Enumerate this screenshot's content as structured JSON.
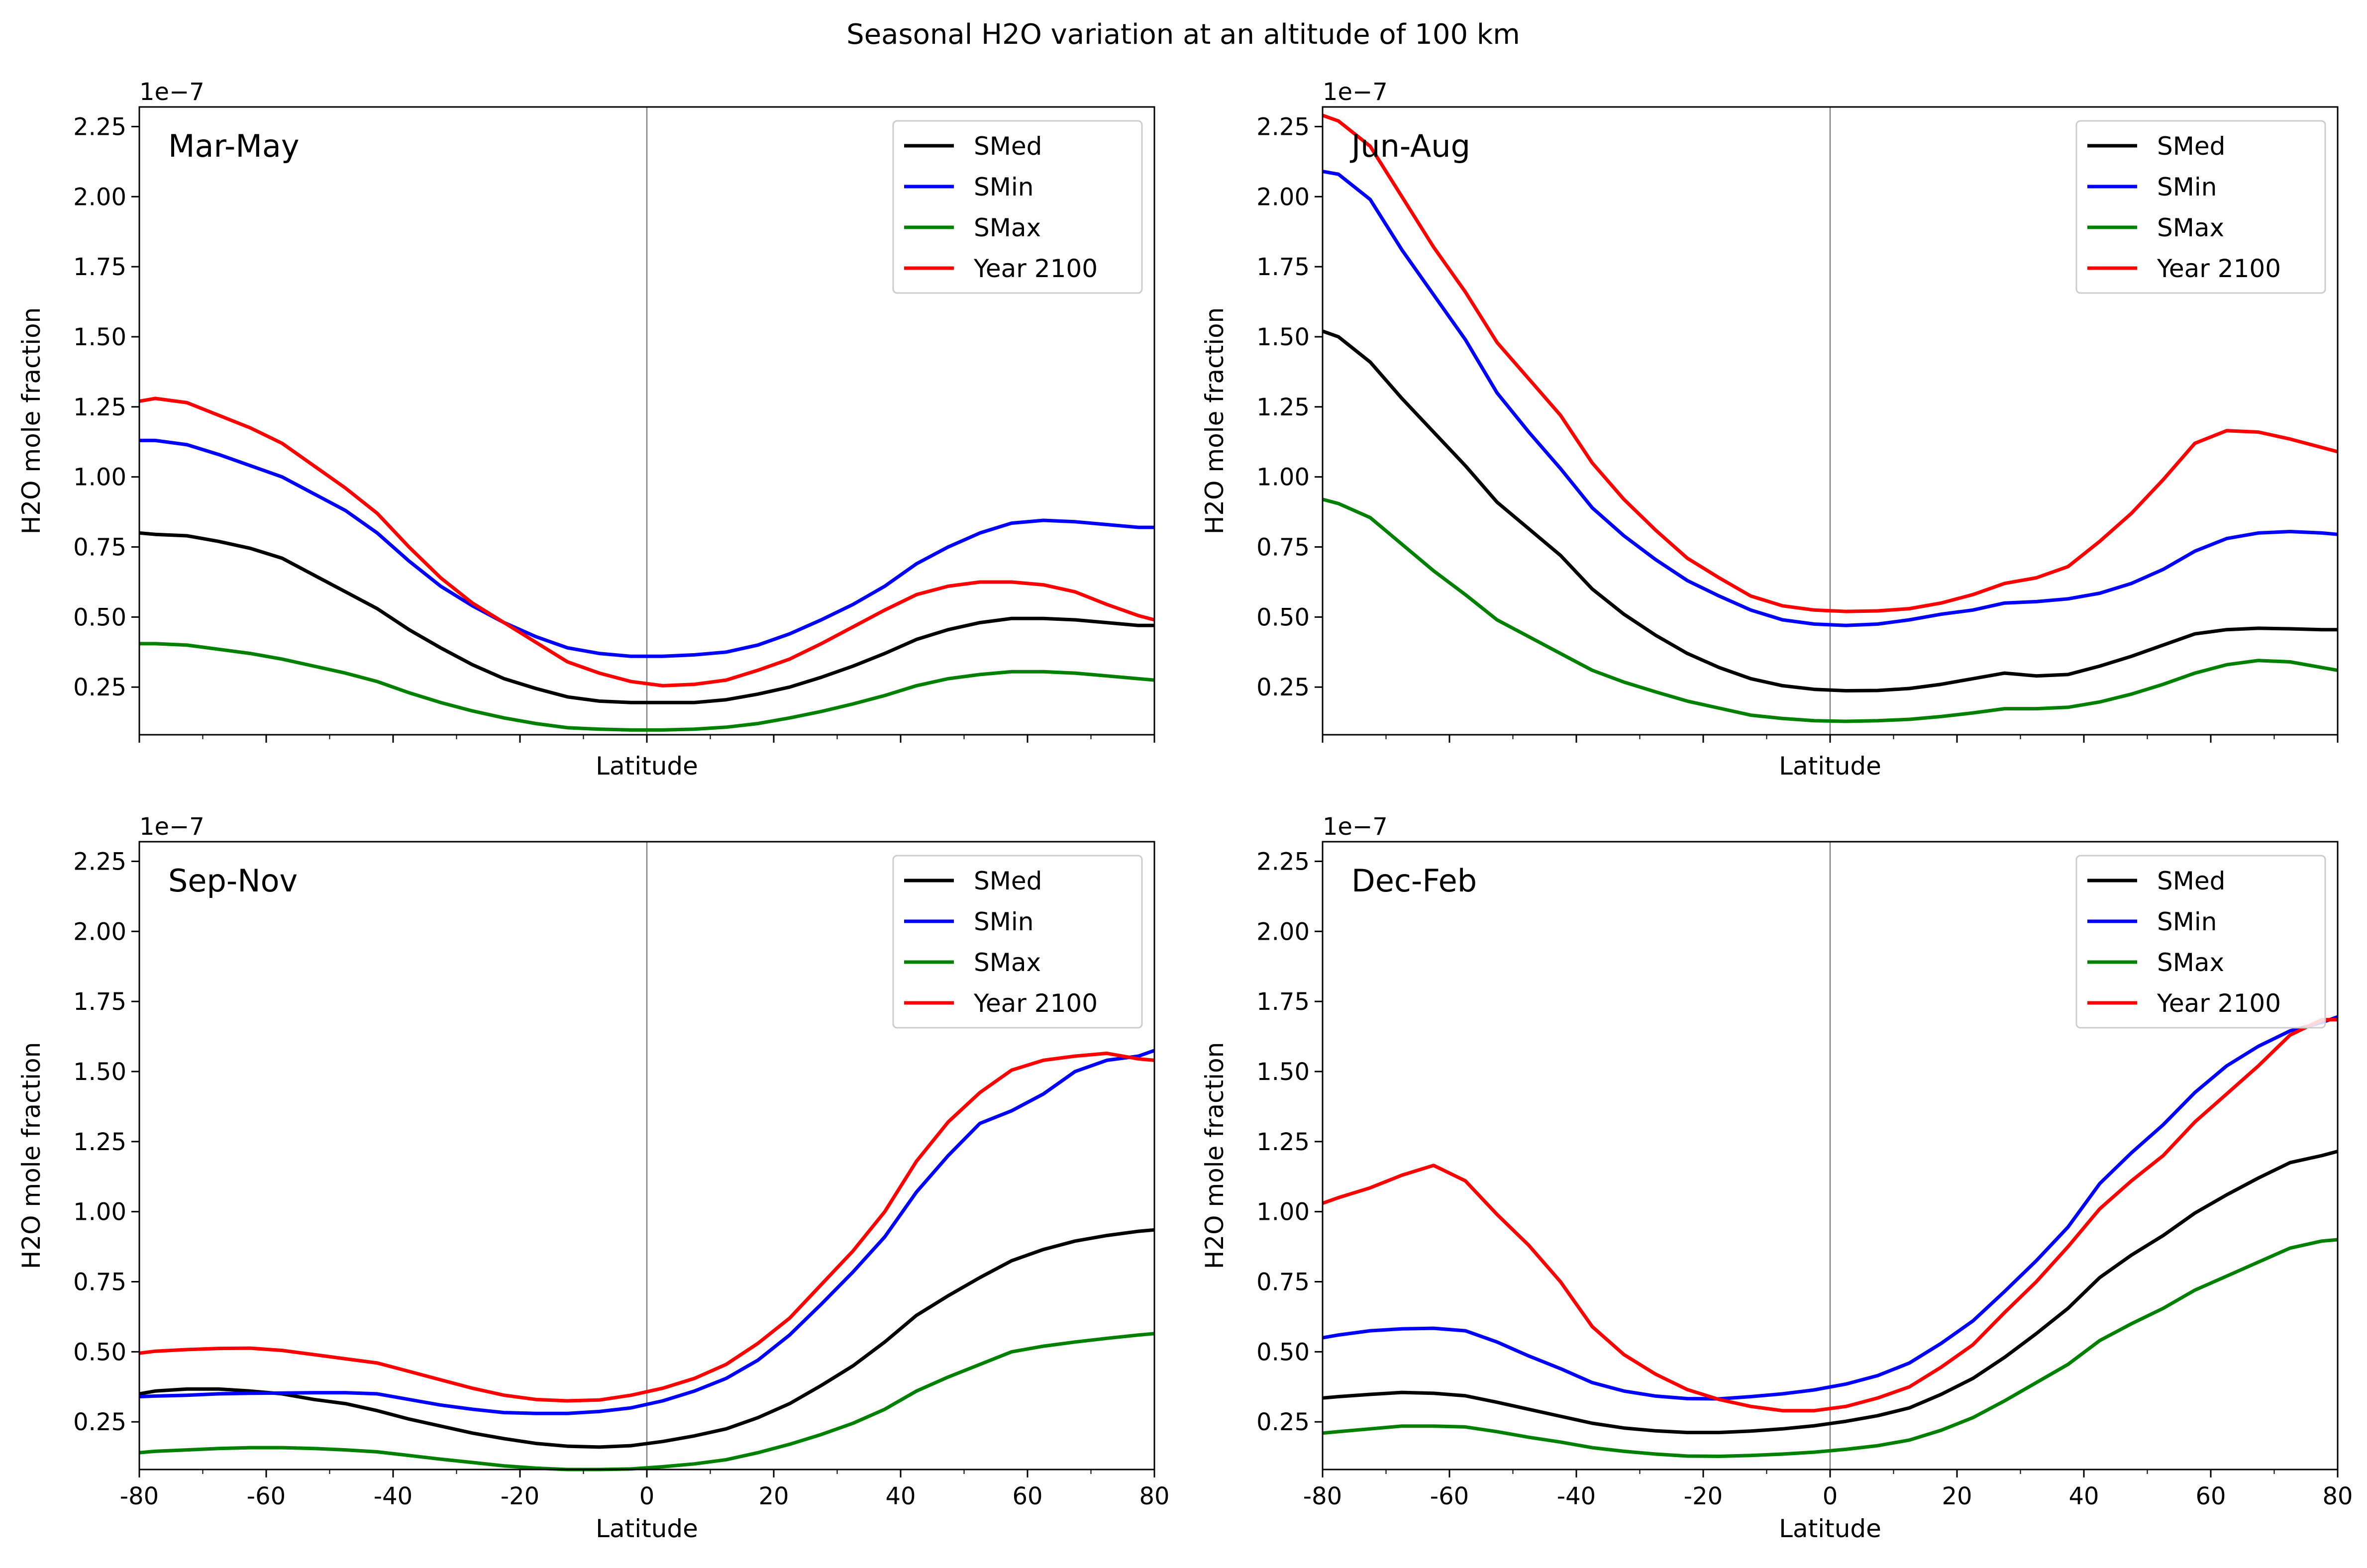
{
  "figure": {
    "title": "Seasonal H2O variation at an altitude of 100 km"
  },
  "colors": {
    "SMed": "#000000",
    "SMin": "#0000ff",
    "SMax": "#008000",
    "Year 2100": "#ff0000",
    "zero_line": "#808080"
  },
  "chart_data": [
    {
      "type": "line",
      "title": "Mar-May",
      "xlabel": "Latitude",
      "ylabel": "H2O mole fraction",
      "y_scale_label": "1e−7",
      "xlim": [
        -80,
        80
      ],
      "ylim": [
        0.08,
        2.32
      ],
      "xticks": [
        -80,
        -60,
        -40,
        -20,
        0,
        20,
        40,
        60,
        80
      ],
      "show_xtick_labels": false,
      "yticks": [
        0.25,
        0.5,
        0.75,
        1.0,
        1.25,
        1.5,
        1.75,
        2.0,
        2.25
      ],
      "ytick_labels": [
        "0.25",
        "0.50",
        "0.75",
        "1.00",
        "1.25",
        "1.50",
        "1.75",
        "2.00",
        "2.25"
      ],
      "legend": "top-right",
      "x": [
        -80,
        -77.5,
        -72.5,
        -67.5,
        -62.5,
        -57.5,
        -52.5,
        -47.5,
        -42.5,
        -37.5,
        -32.5,
        -27.5,
        -22.5,
        -17.5,
        -12.5,
        -7.5,
        -2.5,
        2.5,
        7.5,
        12.5,
        17.5,
        22.5,
        27.5,
        32.5,
        37.5,
        42.5,
        47.5,
        52.5,
        57.5,
        62.5,
        67.5,
        72.5,
        77.5,
        80
      ],
      "series": [
        {
          "name": "SMed",
          "values": [
            0.8,
            0.795,
            0.79,
            0.77,
            0.745,
            0.71,
            0.65,
            0.59,
            0.53,
            0.455,
            0.39,
            0.33,
            0.28,
            0.245,
            0.215,
            0.2,
            0.195,
            0.195,
            0.195,
            0.205,
            0.225,
            0.25,
            0.285,
            0.325,
            0.37,
            0.42,
            0.455,
            0.48,
            0.495,
            0.495,
            0.49,
            0.48,
            0.47,
            0.47
          ]
        },
        {
          "name": "SMin",
          "values": [
            1.13,
            1.13,
            1.115,
            1.08,
            1.04,
            1.0,
            0.94,
            0.88,
            0.8,
            0.7,
            0.61,
            0.54,
            0.48,
            0.43,
            0.39,
            0.37,
            0.36,
            0.36,
            0.365,
            0.375,
            0.4,
            0.44,
            0.49,
            0.545,
            0.61,
            0.69,
            0.75,
            0.8,
            0.835,
            0.845,
            0.84,
            0.83,
            0.82,
            0.82
          ]
        },
        {
          "name": "SMax",
          "values": [
            0.405,
            0.405,
            0.4,
            0.385,
            0.37,
            0.35,
            0.325,
            0.3,
            0.27,
            0.23,
            0.195,
            0.165,
            0.14,
            0.12,
            0.105,
            0.1,
            0.097,
            0.097,
            0.1,
            0.107,
            0.12,
            0.14,
            0.163,
            0.19,
            0.22,
            0.255,
            0.28,
            0.295,
            0.305,
            0.305,
            0.3,
            0.29,
            0.28,
            0.275
          ]
        },
        {
          "name": "Year 2100",
          "values": [
            1.27,
            1.28,
            1.265,
            1.22,
            1.175,
            1.12,
            1.04,
            0.96,
            0.87,
            0.75,
            0.64,
            0.55,
            0.48,
            0.41,
            0.34,
            0.3,
            0.27,
            0.255,
            0.26,
            0.275,
            0.31,
            0.35,
            0.405,
            0.465,
            0.525,
            0.58,
            0.61,
            0.625,
            0.625,
            0.615,
            0.59,
            0.545,
            0.505,
            0.49
          ]
        }
      ]
    },
    {
      "type": "line",
      "title": "Jun-Aug",
      "xlabel": "Latitude",
      "ylabel": "H2O mole fraction",
      "y_scale_label": "1e−7",
      "xlim": [
        -80,
        80
      ],
      "ylim": [
        0.08,
        2.32
      ],
      "xticks": [
        -80,
        -60,
        -40,
        -20,
        0,
        20,
        40,
        60,
        80
      ],
      "show_xtick_labels": false,
      "yticks": [
        0.25,
        0.5,
        0.75,
        1.0,
        1.25,
        1.5,
        1.75,
        2.0,
        2.25
      ],
      "ytick_labels": [
        "0.25",
        "0.50",
        "0.75",
        "1.00",
        "1.25",
        "1.50",
        "1.75",
        "2.00",
        "2.25"
      ],
      "legend": "top-right",
      "x": [
        -80,
        -77.5,
        -72.5,
        -67.5,
        -62.5,
        -57.5,
        -52.5,
        -47.5,
        -42.5,
        -37.5,
        -32.5,
        -27.5,
        -22.5,
        -17.5,
        -12.5,
        -7.5,
        -2.5,
        2.5,
        7.5,
        12.5,
        17.5,
        22.5,
        27.5,
        32.5,
        37.5,
        42.5,
        47.5,
        52.5,
        57.5,
        62.5,
        67.5,
        72.5,
        77.5,
        80
      ],
      "series": [
        {
          "name": "SMed",
          "values": [
            1.52,
            1.5,
            1.41,
            1.28,
            1.16,
            1.04,
            0.91,
            0.815,
            0.72,
            0.6,
            0.51,
            0.435,
            0.37,
            0.32,
            0.28,
            0.255,
            0.242,
            0.237,
            0.238,
            0.245,
            0.26,
            0.28,
            0.3,
            0.29,
            0.295,
            0.325,
            0.36,
            0.4,
            0.44,
            0.455,
            0.46,
            0.458,
            0.455,
            0.455
          ]
        },
        {
          "name": "SMin",
          "values": [
            2.09,
            2.08,
            1.99,
            1.81,
            1.65,
            1.49,
            1.3,
            1.16,
            1.03,
            0.89,
            0.79,
            0.705,
            0.63,
            0.575,
            0.525,
            0.49,
            0.475,
            0.47,
            0.475,
            0.49,
            0.51,
            0.525,
            0.55,
            0.555,
            0.565,
            0.585,
            0.62,
            0.67,
            0.735,
            0.78,
            0.8,
            0.805,
            0.8,
            0.795
          ]
        },
        {
          "name": "SMax",
          "values": [
            0.92,
            0.905,
            0.855,
            0.76,
            0.665,
            0.58,
            0.49,
            0.43,
            0.37,
            0.31,
            0.268,
            0.233,
            0.2,
            0.175,
            0.15,
            0.138,
            0.13,
            0.128,
            0.13,
            0.135,
            0.145,
            0.158,
            0.173,
            0.173,
            0.178,
            0.197,
            0.225,
            0.26,
            0.3,
            0.33,
            0.345,
            0.34,
            0.32,
            0.31
          ]
        },
        {
          "name": "Year 2100",
          "values": [
            2.29,
            2.27,
            2.18,
            2.0,
            1.82,
            1.66,
            1.48,
            1.35,
            1.22,
            1.05,
            0.92,
            0.81,
            0.71,
            0.64,
            0.575,
            0.54,
            0.525,
            0.52,
            0.522,
            0.53,
            0.55,
            0.58,
            0.62,
            0.64,
            0.68,
            0.77,
            0.87,
            0.99,
            1.12,
            1.165,
            1.16,
            1.135,
            1.105,
            1.09
          ]
        }
      ]
    },
    {
      "type": "line",
      "title": "Sep-Nov",
      "xlabel": "Latitude",
      "ylabel": "H2O mole fraction",
      "y_scale_label": "1e−7",
      "xlim": [
        -80,
        80
      ],
      "ylim": [
        0.08,
        2.32
      ],
      "xticks": [
        -80,
        -60,
        -40,
        -20,
        0,
        20,
        40,
        60,
        80
      ],
      "show_xtick_labels": true,
      "yticks": [
        0.25,
        0.5,
        0.75,
        1.0,
        1.25,
        1.5,
        1.75,
        2.0,
        2.25
      ],
      "ytick_labels": [
        "0.25",
        "0.50",
        "0.75",
        "1.00",
        "1.25",
        "1.50",
        "1.75",
        "2.00",
        "2.25"
      ],
      "legend": "top-right",
      "x": [
        -80,
        -77.5,
        -72.5,
        -67.5,
        -62.5,
        -57.5,
        -52.5,
        -47.5,
        -42.5,
        -37.5,
        -32.5,
        -27.5,
        -22.5,
        -17.5,
        -12.5,
        -7.5,
        -2.5,
        2.5,
        7.5,
        12.5,
        17.5,
        22.5,
        27.5,
        32.5,
        37.5,
        42.5,
        47.5,
        52.5,
        57.5,
        62.5,
        67.5,
        72.5,
        77.5,
        80
      ],
      "series": [
        {
          "name": "SMed",
          "values": [
            0.35,
            0.36,
            0.367,
            0.367,
            0.36,
            0.35,
            0.33,
            0.315,
            0.29,
            0.26,
            0.235,
            0.21,
            0.19,
            0.173,
            0.163,
            0.16,
            0.165,
            0.18,
            0.2,
            0.225,
            0.265,
            0.315,
            0.38,
            0.45,
            0.535,
            0.63,
            0.7,
            0.765,
            0.825,
            0.865,
            0.895,
            0.915,
            0.93,
            0.935
          ]
        },
        {
          "name": "SMin",
          "values": [
            0.34,
            0.342,
            0.345,
            0.35,
            0.352,
            0.353,
            0.354,
            0.354,
            0.35,
            0.33,
            0.31,
            0.295,
            0.283,
            0.28,
            0.28,
            0.287,
            0.3,
            0.325,
            0.36,
            0.405,
            0.47,
            0.56,
            0.67,
            0.785,
            0.91,
            1.07,
            1.2,
            1.315,
            1.36,
            1.42,
            1.5,
            1.54,
            1.555,
            1.575
          ]
        },
        {
          "name": "SMax",
          "values": [
            0.14,
            0.145,
            0.15,
            0.155,
            0.158,
            0.158,
            0.155,
            0.15,
            0.143,
            0.13,
            0.117,
            0.105,
            0.093,
            0.085,
            0.08,
            0.08,
            0.082,
            0.09,
            0.1,
            0.115,
            0.14,
            0.17,
            0.205,
            0.245,
            0.295,
            0.36,
            0.41,
            0.455,
            0.5,
            0.52,
            0.535,
            0.548,
            0.56,
            0.565
          ]
        },
        {
          "name": "Year 2100",
          "values": [
            0.495,
            0.502,
            0.508,
            0.512,
            0.513,
            0.505,
            0.49,
            0.475,
            0.46,
            0.43,
            0.4,
            0.37,
            0.345,
            0.33,
            0.325,
            0.328,
            0.345,
            0.37,
            0.405,
            0.455,
            0.53,
            0.62,
            0.74,
            0.86,
            1.0,
            1.18,
            1.32,
            1.425,
            1.505,
            1.54,
            1.555,
            1.565,
            1.545,
            1.54
          ]
        }
      ]
    },
    {
      "type": "line",
      "title": "Dec-Feb",
      "xlabel": "Latitude",
      "ylabel": "H2O mole fraction",
      "y_scale_label": "1e−7",
      "xlim": [
        -80,
        80
      ],
      "ylim": [
        0.08,
        2.32
      ],
      "xticks": [
        -80,
        -60,
        -40,
        -20,
        0,
        20,
        40,
        60,
        80
      ],
      "show_xtick_labels": true,
      "yticks": [
        0.25,
        0.5,
        0.75,
        1.0,
        1.25,
        1.5,
        1.75,
        2.0,
        2.25
      ],
      "ytick_labels": [
        "0.25",
        "0.50",
        "0.75",
        "1.00",
        "1.25",
        "1.50",
        "1.75",
        "2.00",
        "2.25"
      ],
      "legend": "top-right",
      "x": [
        -80,
        -77.5,
        -72.5,
        -67.5,
        -62.5,
        -57.5,
        -52.5,
        -47.5,
        -42.5,
        -37.5,
        -32.5,
        -27.5,
        -22.5,
        -17.5,
        -12.5,
        -7.5,
        -2.5,
        2.5,
        7.5,
        12.5,
        17.5,
        22.5,
        27.5,
        32.5,
        37.5,
        42.5,
        47.5,
        52.5,
        57.5,
        62.5,
        67.5,
        72.5,
        77.5,
        80
      ],
      "series": [
        {
          "name": "SMed",
          "values": [
            0.335,
            0.34,
            0.348,
            0.355,
            0.352,
            0.343,
            0.32,
            0.295,
            0.27,
            0.245,
            0.228,
            0.218,
            0.212,
            0.212,
            0.217,
            0.225,
            0.236,
            0.252,
            0.272,
            0.3,
            0.348,
            0.405,
            0.48,
            0.565,
            0.655,
            0.765,
            0.845,
            0.915,
            0.995,
            1.06,
            1.12,
            1.175,
            1.2,
            1.215
          ]
        },
        {
          "name": "SMin",
          "values": [
            0.55,
            0.56,
            0.575,
            0.582,
            0.584,
            0.575,
            0.535,
            0.485,
            0.44,
            0.39,
            0.36,
            0.342,
            0.333,
            0.332,
            0.34,
            0.35,
            0.364,
            0.385,
            0.415,
            0.46,
            0.53,
            0.61,
            0.715,
            0.825,
            0.945,
            1.1,
            1.21,
            1.31,
            1.425,
            1.52,
            1.59,
            1.645,
            1.675,
            1.695
          ]
        },
        {
          "name": "SMax",
          "values": [
            0.21,
            0.215,
            0.225,
            0.235,
            0.235,
            0.232,
            0.215,
            0.195,
            0.178,
            0.158,
            0.145,
            0.135,
            0.128,
            0.127,
            0.13,
            0.135,
            0.142,
            0.152,
            0.165,
            0.185,
            0.22,
            0.265,
            0.325,
            0.39,
            0.455,
            0.54,
            0.6,
            0.655,
            0.72,
            0.77,
            0.82,
            0.87,
            0.895,
            0.9
          ]
        },
        {
          "name": "Year 2100",
          "values": [
            1.03,
            1.05,
            1.085,
            1.13,
            1.165,
            1.11,
            0.99,
            0.88,
            0.75,
            0.59,
            0.49,
            0.42,
            0.365,
            0.33,
            0.305,
            0.29,
            0.29,
            0.305,
            0.335,
            0.375,
            0.445,
            0.525,
            0.64,
            0.75,
            0.875,
            1.01,
            1.11,
            1.2,
            1.32,
            1.42,
            1.52,
            1.63,
            1.685,
            1.685
          ]
        }
      ]
    }
  ]
}
